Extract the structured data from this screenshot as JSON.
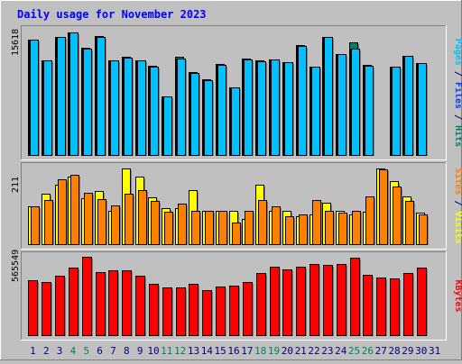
{
  "chart_data": {
    "type": "bar",
    "title": "Daily usage for November 2023",
    "categories": [
      "1",
      "2",
      "3",
      "4",
      "5",
      "6",
      "7",
      "8",
      "9",
      "10",
      "11",
      "12",
      "13",
      "14",
      "15",
      "16",
      "17",
      "18",
      "19",
      "20",
      "21",
      "22",
      "23",
      "24",
      "25",
      "26",
      "27",
      "28",
      "29",
      "30",
      "31"
    ],
    "weekend_days": [
      "4",
      "5",
      "11",
      "12",
      "18",
      "19",
      "25",
      "26"
    ],
    "panels": [
      {
        "id": "hits",
        "ymax_label": "15618",
        "ymax": 15618,
        "right_label": [
          {
            "text": "Pages",
            "color": "#00c0ff"
          },
          {
            "text": " / ",
            "color": "#000080"
          },
          {
            "text": "Files",
            "color": "#0040ff"
          },
          {
            "text": " / ",
            "color": "#000080"
          },
          {
            "text": "Hits",
            "color": "#008060"
          }
        ],
        "series": [
          {
            "name": "Hits",
            "color": "#008060",
            "values": [
              14510,
              11900,
              14830,
              15400,
              13430,
              14900,
              11900,
              12300,
              11920,
              11150,
              7390,
              12280,
              10390,
              9500,
              11430,
              8540,
              12090,
              11860,
              12020,
              11680,
              13800,
              11100,
              14840,
              12700,
              14100,
              11300,
              null,
              11110,
              12500,
              11600,
              null
            ]
          },
          {
            "name": "Files",
            "color": "#0040ff",
            "values": [
              14440,
              11840,
              14770,
              15360,
              13370,
              14860,
              11840,
              12240,
              11860,
              11090,
              7340,
              12090,
              10270,
              9430,
              11360,
              8470,
              12030,
              11800,
              11960,
              11620,
              13750,
              11040,
              14790,
              12620,
              13400,
              11240,
              null,
              11050,
              12440,
              11540,
              null
            ]
          },
          {
            "name": "Pages",
            "color": "#00c0ff",
            "values": [
              14440,
              11840,
              14770,
              15360,
              13370,
              14860,
              11840,
              12240,
              11860,
              11090,
              7340,
              12090,
              10270,
              9430,
              11360,
              8470,
              12030,
              11800,
              11960,
              11620,
              13750,
              11040,
              14790,
              12620,
              13400,
              11240,
              null,
              11050,
              12440,
              11540,
              null
            ]
          }
        ]
      },
      {
        "id": "visits",
        "ymax_label": "211",
        "ymax": 211,
        "right_label": [
          {
            "text": "Sites",
            "color": "#ff8000"
          },
          {
            "text": " / ",
            "color": "#000080"
          },
          {
            "text": "Visits",
            "color": "#ffff00"
          }
        ],
        "series": [
          {
            "name": "Visits",
            "color": "#ffff00",
            "values": [
              105,
              140,
              163,
              187,
              127,
              147,
              91,
              208,
              185,
              129,
              99,
              100,
              150,
              92,
              91,
              92,
              69,
              163,
              91,
              93,
              78,
              83,
              114,
              92,
              81,
              90,
              209,
              175,
              132,
              87,
              null
            ]
          },
          {
            "name": "Sites",
            "color": "#ff8000",
            "values": [
              105,
              122,
              178,
              191,
              141,
              124,
              107,
              140,
              150,
              118,
              89,
              112,
              93,
              92,
              91,
              60,
              91,
              121,
              104,
              77,
              81,
              121,
              91,
              87,
              91,
              132,
              205,
              160,
              118,
              83,
              null
            ]
          }
        ]
      },
      {
        "id": "kbytes",
        "ymax_label": "565549",
        "ymax": 565549,
        "right_label": [
          {
            "text": "KBytes",
            "color": "#ff0000"
          }
        ],
        "series": [
          {
            "name": "KBytes",
            "color": "#ff0000",
            "values": [
              399000,
              382000,
              428000,
              485000,
              564000,
              455000,
              465000,
              465000,
              432000,
              371000,
              344000,
              347000,
              371000,
              328000,
              353000,
              360000,
              384000,
              450000,
              495000,
              475000,
              492000,
              516000,
              510000,
              516000,
              562000,
              436000,
              415000,
              409000,
              446000,
              487000,
              null
            ]
          }
        ]
      }
    ],
    "colors": {
      "background": "#c0c0c0",
      "plot_background": "#c0c0c0",
      "title": "#0000ff",
      "weekday_label": "#000080",
      "weekend_label": "#008060"
    }
  }
}
